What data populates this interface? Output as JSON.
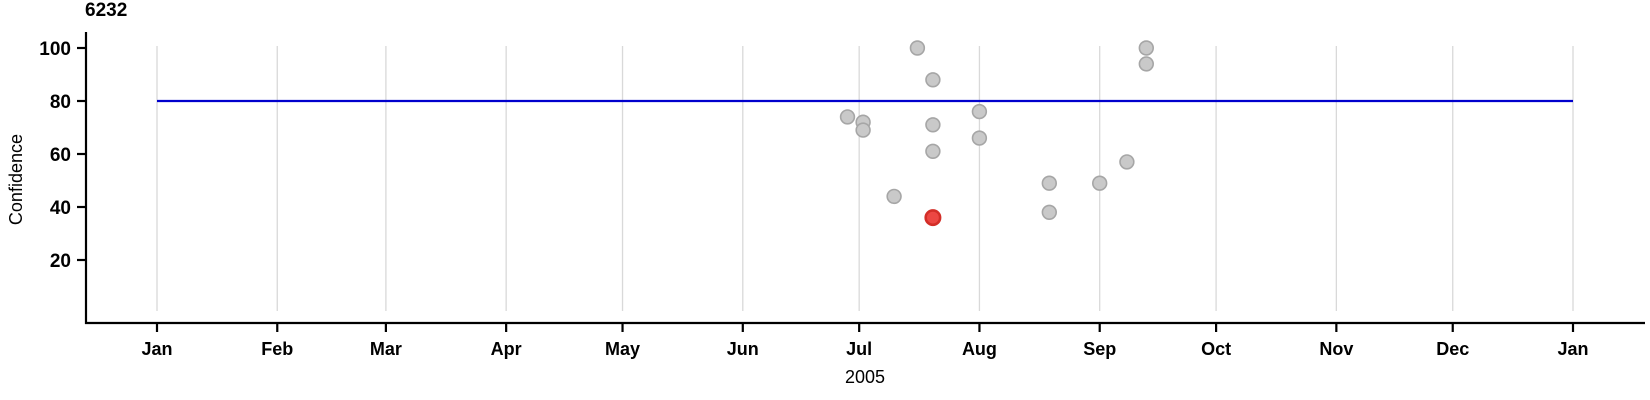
{
  "chart_data": {
    "type": "scatter",
    "title": "6232",
    "xlabel": "2005",
    "ylabel": "Confidence",
    "grid": "vertical month gridlines only",
    "legend": "none",
    "y_axis": {
      "ticks": [
        20,
        40,
        60,
        80,
        100
      ],
      "range": [
        0,
        106
      ]
    },
    "x_axis": {
      "year_label": "2005",
      "months": [
        {
          "label": "Jan",
          "day": 0
        },
        {
          "label": "Feb",
          "day": 31
        },
        {
          "label": "Mar",
          "day": 59
        },
        {
          "label": "Apr",
          "day": 90
        },
        {
          "label": "May",
          "day": 120
        },
        {
          "label": "Jun",
          "day": 151
        },
        {
          "label": "Jul",
          "day": 181
        },
        {
          "label": "Aug",
          "day": 212
        },
        {
          "label": "Sep",
          "day": 243
        },
        {
          "label": "Oct",
          "day": 273
        },
        {
          "label": "Nov",
          "day": 304
        },
        {
          "label": "Dec",
          "day": 334
        },
        {
          "label": "Jan",
          "day": 365
        }
      ]
    },
    "reference_line": {
      "axis": "y",
      "value": 80
    },
    "points": [
      {
        "date": "Jun 28",
        "day": 178,
        "confidence": 74,
        "highlighted": false
      },
      {
        "date": "Jul 2",
        "day": 182,
        "confidence": 72,
        "highlighted": false
      },
      {
        "date": "Jul 2",
        "day": 182,
        "confidence": 69,
        "highlighted": false
      },
      {
        "date": "Jul 10",
        "day": 190,
        "confidence": 44,
        "highlighted": false
      },
      {
        "date": "Jul 16",
        "day": 196,
        "confidence": 100,
        "highlighted": false
      },
      {
        "date": "Jul 20",
        "day": 200,
        "confidence": 88,
        "highlighted": false
      },
      {
        "date": "Jul 20",
        "day": 200,
        "confidence": 71,
        "highlighted": false
      },
      {
        "date": "Jul 20",
        "day": 200,
        "confidence": 61,
        "highlighted": false
      },
      {
        "date": "Jul 20",
        "day": 200,
        "confidence": 36,
        "highlighted": true
      },
      {
        "date": "Aug 1",
        "day": 212,
        "confidence": 76,
        "highlighted": false
      },
      {
        "date": "Aug 1",
        "day": 212,
        "confidence": 66,
        "highlighted": false
      },
      {
        "date": "Aug 19",
        "day": 230,
        "confidence": 49,
        "highlighted": false
      },
      {
        "date": "Aug 19",
        "day": 230,
        "confidence": 38,
        "highlighted": false
      },
      {
        "date": "Sep 1",
        "day": 243,
        "confidence": 49,
        "highlighted": false
      },
      {
        "date": "Sep 8",
        "day": 250,
        "confidence": 57,
        "highlighted": false
      },
      {
        "date": "Sep 13",
        "day": 255,
        "confidence": 100,
        "highlighted": false
      },
      {
        "date": "Sep 13",
        "day": 255,
        "confidence": 94,
        "highlighted": false
      }
    ],
    "colors": {
      "grid": "#d9d9d9",
      "axis": "#000000",
      "reference_line": "#0000cd",
      "point_fill": "#c9c9c9",
      "point_stroke": "#a6a6a6",
      "highlight_fill": "#ec4743",
      "highlight_stroke": "#d32e28"
    }
  }
}
